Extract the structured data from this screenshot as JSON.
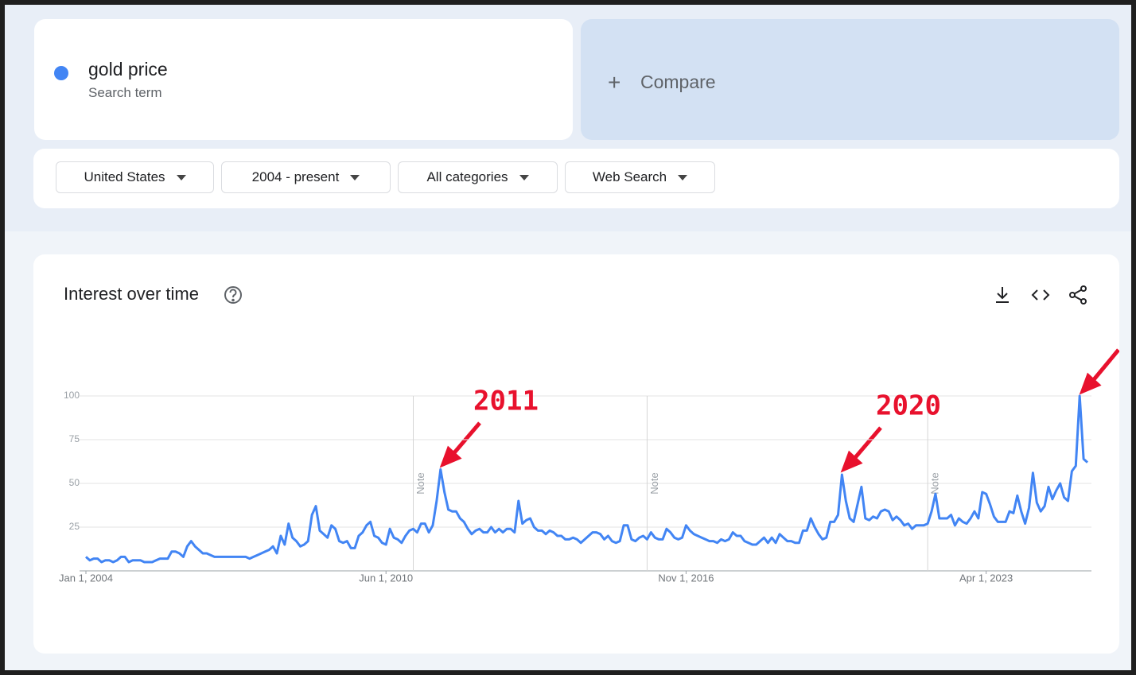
{
  "search_term": {
    "subtitle": "Search term"
  },
  "compare": "Compare",
  "filters": [
    "United States",
    "2004 - present",
    "All categories",
    "Web Search"
  ],
  "chart_data": {
    "type": "line",
    "title": "Interest over time",
    "x": [
      0,
      1,
      2,
      3,
      4,
      5,
      6,
      7,
      8,
      9,
      10,
      11,
      12,
      13,
      14,
      15,
      16,
      17,
      18,
      19,
      20,
      21,
      22,
      23,
      24,
      25,
      26,
      27,
      28,
      29,
      30,
      31,
      32,
      33,
      34,
      35,
      36,
      37,
      38,
      39,
      40,
      41,
      42,
      43,
      44,
      45,
      46,
      47,
      48,
      49,
      50,
      51,
      52,
      53,
      54,
      55,
      56,
      57,
      58,
      59,
      60,
      61,
      62,
      63,
      64,
      65,
      66,
      67,
      68,
      69,
      70,
      71,
      72,
      73,
      74,
      75,
      76,
      77,
      78,
      79,
      80,
      81,
      82,
      83,
      84,
      85,
      86,
      87,
      88,
      89,
      90,
      91,
      92,
      93,
      94,
      95,
      96,
      97,
      98,
      99,
      100,
      101,
      102,
      103,
      104,
      105,
      106,
      107,
      108,
      109,
      110,
      111,
      112,
      113,
      114,
      115,
      116,
      117,
      118,
      119,
      120,
      121,
      122,
      123,
      124,
      125,
      126,
      127,
      128,
      129,
      130,
      131,
      132,
      133,
      134,
      135,
      136,
      137,
      138,
      139,
      140,
      141,
      142,
      143,
      144,
      145,
      146,
      147,
      148,
      149,
      150,
      151,
      152,
      153,
      154,
      155,
      156,
      157,
      158,
      159,
      160,
      161,
      162,
      163,
      164,
      165,
      166,
      167,
      168,
      169,
      170,
      171,
      172,
      173,
      174,
      175,
      176,
      177,
      178,
      179,
      180,
      181,
      182,
      183,
      184,
      185,
      186,
      187,
      188,
      189,
      190,
      191,
      192,
      193,
      194,
      195,
      196,
      197,
      198,
      199,
      200,
      201,
      202,
      203,
      204,
      205,
      206,
      207,
      208,
      209,
      210,
      211,
      212,
      213,
      214,
      215,
      216,
      217,
      218,
      219,
      220,
      221,
      222,
      223,
      224,
      225,
      226,
      227,
      228,
      229,
      230,
      231,
      232,
      233,
      234,
      235,
      236,
      237,
      238,
      239,
      240,
      241,
      242,
      243,
      244,
      245,
      246,
      247,
      248,
      249,
      250,
      251,
      252,
      253,
      254,
      255,
      256,
      257
    ],
    "series": [
      {
        "name": "gold price",
        "color": "#4285f4",
        "values": [
          8,
          6,
          7,
          7,
          5,
          6,
          6,
          5,
          6,
          8,
          8,
          5,
          6,
          6,
          6,
          5,
          5,
          5,
          6,
          7,
          7,
          7,
          11,
          11,
          10,
          8,
          14,
          17,
          14,
          12,
          10,
          10,
          9,
          8,
          8,
          8,
          8,
          8,
          8,
          8,
          8,
          8,
          7,
          8,
          9,
          10,
          11,
          12,
          14,
          10,
          20,
          15,
          27,
          19,
          17,
          14,
          15,
          17,
          32,
          37,
          23,
          21,
          19,
          26,
          24,
          17,
          16,
          17,
          13,
          13,
          20,
          22,
          26,
          28,
          20,
          19,
          16,
          15,
          24,
          19,
          18,
          16,
          20,
          23,
          24,
          22,
          27,
          27,
          22,
          26,
          40,
          58,
          45,
          35,
          34,
          34,
          30,
          28,
          24,
          21,
          23,
          24,
          22,
          22,
          25,
          22,
          24,
          22,
          24,
          24,
          22,
          40,
          27,
          29,
          30,
          25,
          23,
          23,
          21,
          23,
          22,
          20,
          20,
          18,
          18,
          19,
          18,
          16,
          18,
          20,
          22,
          22,
          21,
          18,
          20,
          17,
          16,
          17,
          26,
          26,
          18,
          17,
          19,
          20,
          18,
          22,
          19,
          18,
          18,
          24,
          22,
          19,
          18,
          19,
          26,
          23,
          21,
          20,
          19,
          18,
          17,
          17,
          16,
          18,
          17,
          18,
          22,
          20,
          20,
          17,
          16,
          15,
          15,
          17,
          19,
          16,
          19,
          16,
          21,
          19,
          17,
          17,
          16,
          16,
          23,
          23,
          30,
          25,
          21,
          18,
          19,
          28,
          28,
          32,
          55,
          40,
          30,
          28,
          38,
          48,
          30,
          29,
          31,
          30,
          34,
          35,
          34,
          29,
          31,
          29,
          26,
          27,
          24,
          26,
          26,
          26,
          27,
          34,
          44,
          30,
          30,
          30,
          32,
          26,
          30,
          28,
          27,
          30,
          34,
          30,
          45,
          44,
          38,
          31,
          28,
          28,
          28,
          34,
          33,
          43,
          34,
          27,
          36,
          56,
          39,
          34,
          37,
          48,
          41,
          46,
          50,
          42,
          40,
          57,
          60,
          100,
          64,
          62
        ]
      }
    ],
    "xlim": [
      0,
      257
    ],
    "xticks": [
      {
        "value": 0,
        "label": "Jan 1, 2004"
      },
      {
        "value": 77,
        "label": "Jun 1, 2010"
      },
      {
        "value": 154,
        "label": "Nov 1, 2016"
      },
      {
        "value": 231,
        "label": "Apr 1, 2023"
      }
    ],
    "ylim": [
      0,
      100
    ],
    "yticks": [
      25,
      50,
      75,
      100
    ],
    "grid": true,
    "notes": [
      {
        "x": 84,
        "label": "Note"
      },
      {
        "x": 144,
        "label": "Note"
      },
      {
        "x": 216,
        "label": "Note"
      }
    ],
    "annotations": [
      "2011",
      "2020"
    ],
    "annotation_color": "#e8112d"
  }
}
